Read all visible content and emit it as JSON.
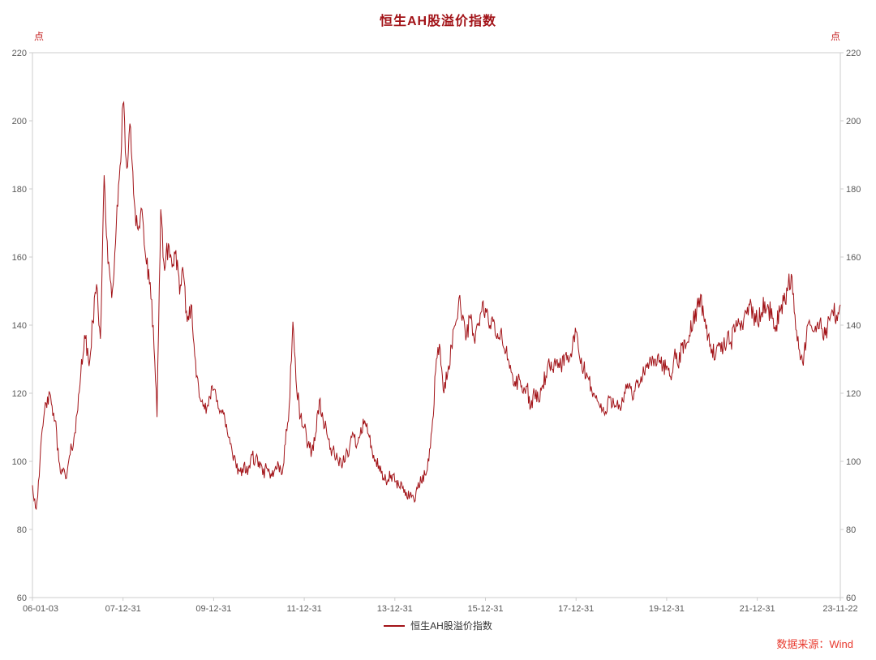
{
  "colors": {
    "line": "#a21318",
    "title": "#a21318",
    "unit": "#c42222",
    "source": "#e8392e",
    "axis_text": "#595959",
    "axis_border": "#cccccc",
    "background": "#ffffff"
  },
  "chart_data": {
    "type": "line",
    "title": "恒生AH股溢价指数",
    "unit_label": "点",
    "legend_label": "恒生AH股溢价指数",
    "source": "数据来源：Wind",
    "ylim": [
      60,
      220
    ],
    "y_ticks": [
      220,
      200,
      180,
      160,
      140,
      120,
      100,
      80,
      60
    ],
    "grid": false,
    "legend_position": "bottom-center",
    "x_ticks": [
      {
        "label": "06-01-03",
        "month": 0
      },
      {
        "label": "07-12-31",
        "month": 24
      },
      {
        "label": "09-12-31",
        "month": 48
      },
      {
        "label": "11-12-31",
        "month": 72
      },
      {
        "label": "13-12-31",
        "month": 96
      },
      {
        "label": "15-12-31",
        "month": 120
      },
      {
        "label": "17-12-31",
        "month": 144
      },
      {
        "label": "19-12-31",
        "month": 168
      },
      {
        "label": "21-12-31",
        "month": 192
      },
      {
        "label": "23-11-22",
        "month": 214
      }
    ],
    "daily_noise": 0.022,
    "series": [
      {
        "name": "恒生AH股溢价指数",
        "color": "#a21318",
        "monthly_start": "2006-01",
        "monthly_end": "2023-11",
        "values": [
          93,
          86,
          100,
          113,
          119,
          117,
          112,
          100,
          97,
          95,
          102,
          107,
          115,
          130,
          136,
          128,
          141,
          152,
          136,
          184,
          158,
          148,
          164,
          183,
          205,
          186,
          198,
          176,
          168,
          174,
          160,
          152,
          140,
          113,
          174,
          156,
          164,
          157,
          162,
          149,
          155,
          141,
          146,
          131,
          122,
          118,
          114,
          119,
          121,
          118,
          115,
          112,
          107,
          102,
          98,
          97,
          99,
          96,
          102,
          100,
          100,
          96,
          98,
          95,
          97,
          100,
          96,
          105,
          116,
          141,
          121,
          113,
          110,
          105,
          103,
          108,
          118,
          112,
          108,
          104,
          102,
          100,
          98,
          102,
          104,
          108,
          105,
          110,
          112,
          108,
          103,
          100,
          97,
          95,
          94,
          96,
          94,
          93,
          92,
          91,
          90,
          89,
          92,
          94,
          96,
          100,
          112,
          130,
          133,
          120,
          126,
          134,
          140,
          148,
          143,
          137,
          142,
          136,
          140,
          144,
          145,
          139,
          141,
          136,
          138,
          133,
          130,
          126,
          122,
          124,
          120,
          122,
          116,
          120,
          118,
          122,
          125,
          128,
          126,
          130,
          128,
          131,
          129,
          133,
          138,
          130,
          127,
          125,
          122,
          119,
          117,
          115,
          114,
          119,
          117,
          118,
          116,
          120,
          122,
          118,
          124,
          123,
          126,
          129,
          128,
          130,
          129,
          128,
          128,
          125,
          131,
          128,
          134,
          133,
          137,
          141,
          145,
          149,
          141,
          137,
          133,
          131,
          134,
          133,
          136,
          135,
          138,
          142,
          140,
          144,
          146,
          143,
          141,
          143,
          147,
          145,
          142,
          140,
          144,
          147,
          150,
          155,
          143,
          133,
          129,
          136,
          140,
          138,
          141,
          139,
          137,
          142,
          144,
          143,
          146
        ]
      }
    ]
  }
}
